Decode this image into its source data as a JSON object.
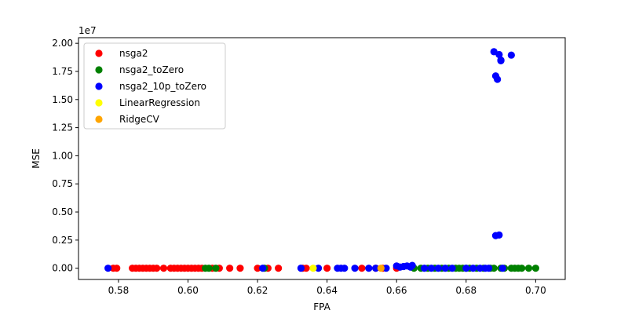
{
  "chart_data": {
    "type": "scatter",
    "title": "",
    "xlabel": "FPA",
    "ylabel": "MSE",
    "y_offset_text": "1e7",
    "xlim": [
      0.5685,
      0.7085
    ],
    "ylim": [
      -1000000,
      20500000
    ],
    "x_ticks": [
      0.58,
      0.6,
      0.62,
      0.64,
      0.66,
      0.68,
      0.7
    ],
    "x_tick_labels": [
      "0.58",
      "0.60",
      "0.62",
      "0.64",
      "0.66",
      "0.68",
      "0.70"
    ],
    "y_ticks": [
      0,
      2500000,
      5000000,
      7500000,
      10000000,
      12500000,
      15000000,
      17500000,
      20000000
    ],
    "y_tick_labels": [
      "0.00",
      "0.25",
      "0.50",
      "0.75",
      "1.00",
      "1.25",
      "1.50",
      "1.75",
      "2.00"
    ],
    "grid": false,
    "legend_position": "top-left",
    "series": [
      {
        "name": "nsga2",
        "color": "#ff0000",
        "x": [
          0.5785,
          0.5795,
          0.584,
          0.585,
          0.586,
          0.587,
          0.588,
          0.589,
          0.59,
          0.591,
          0.593,
          0.595,
          0.596,
          0.597,
          0.598,
          0.599,
          0.6,
          0.601,
          0.602,
          0.603,
          0.604,
          0.607,
          0.609,
          0.612,
          0.615,
          0.62,
          0.623,
          0.626,
          0.633,
          0.634,
          0.64,
          0.65,
          0.654,
          0.656,
          0.66
        ],
        "y": [
          0,
          0,
          0,
          0,
          0,
          0,
          0,
          0,
          0,
          0,
          0,
          0,
          0,
          0,
          0,
          0,
          0,
          0,
          0,
          0,
          0,
          0,
          0,
          0,
          0,
          0,
          0,
          0,
          0,
          0,
          0,
          0,
          0,
          0,
          0
        ]
      },
      {
        "name": "nsga2_toZero",
        "color": "#008000",
        "x": [
          0.605,
          0.606,
          0.608,
          0.622,
          0.665,
          0.667,
          0.669,
          0.671,
          0.673,
          0.675,
          0.677,
          0.678,
          0.679,
          0.68,
          0.681,
          0.683,
          0.685,
          0.687,
          0.688,
          0.69,
          0.691,
          0.693,
          0.694,
          0.695,
          0.696,
          0.698,
          0.7
        ],
        "y": [
          0,
          0,
          0,
          0,
          0,
          0,
          0,
          0,
          0,
          0,
          0,
          0,
          0,
          0,
          0,
          0,
          0,
          0,
          0,
          0,
          0,
          0,
          0,
          0,
          0,
          0,
          0
        ]
      },
      {
        "name": "nsga2_10p_toZero",
        "color": "#0000ff",
        "x": [
          0.577,
          0.6215,
          0.6325,
          0.6375,
          0.643,
          0.644,
          0.645,
          0.648,
          0.652,
          0.654,
          0.657,
          0.66,
          0.661,
          0.662,
          0.663,
          0.664,
          0.6645,
          0.668,
          0.67,
          0.672,
          0.674,
          0.676,
          0.68,
          0.682,
          0.684,
          0.6855,
          0.6865,
          0.688,
          0.6885,
          0.6895,
          0.689,
          0.69,
          0.69,
          0.693,
          0.6885,
          0.6895,
          0.6905
        ],
        "y": [
          0,
          0,
          0,
          0,
          0,
          0,
          0,
          0,
          0,
          0,
          0,
          200000,
          100000,
          150000,
          200000,
          100000,
          250000,
          0,
          0,
          0,
          0,
          0,
          0,
          0,
          0,
          0,
          0,
          19250000,
          17100000,
          19000000,
          16800000,
          18500000,
          18450000,
          18950000,
          2900000,
          2950000,
          0
        ]
      },
      {
        "name": "LinearRegression",
        "color": "#ffff00",
        "x": [
          0.636
        ],
        "y": [
          0
        ]
      },
      {
        "name": "RidgeCV",
        "color": "#ffa500",
        "x": [
          0.6555
        ],
        "y": [
          0
        ]
      }
    ]
  }
}
